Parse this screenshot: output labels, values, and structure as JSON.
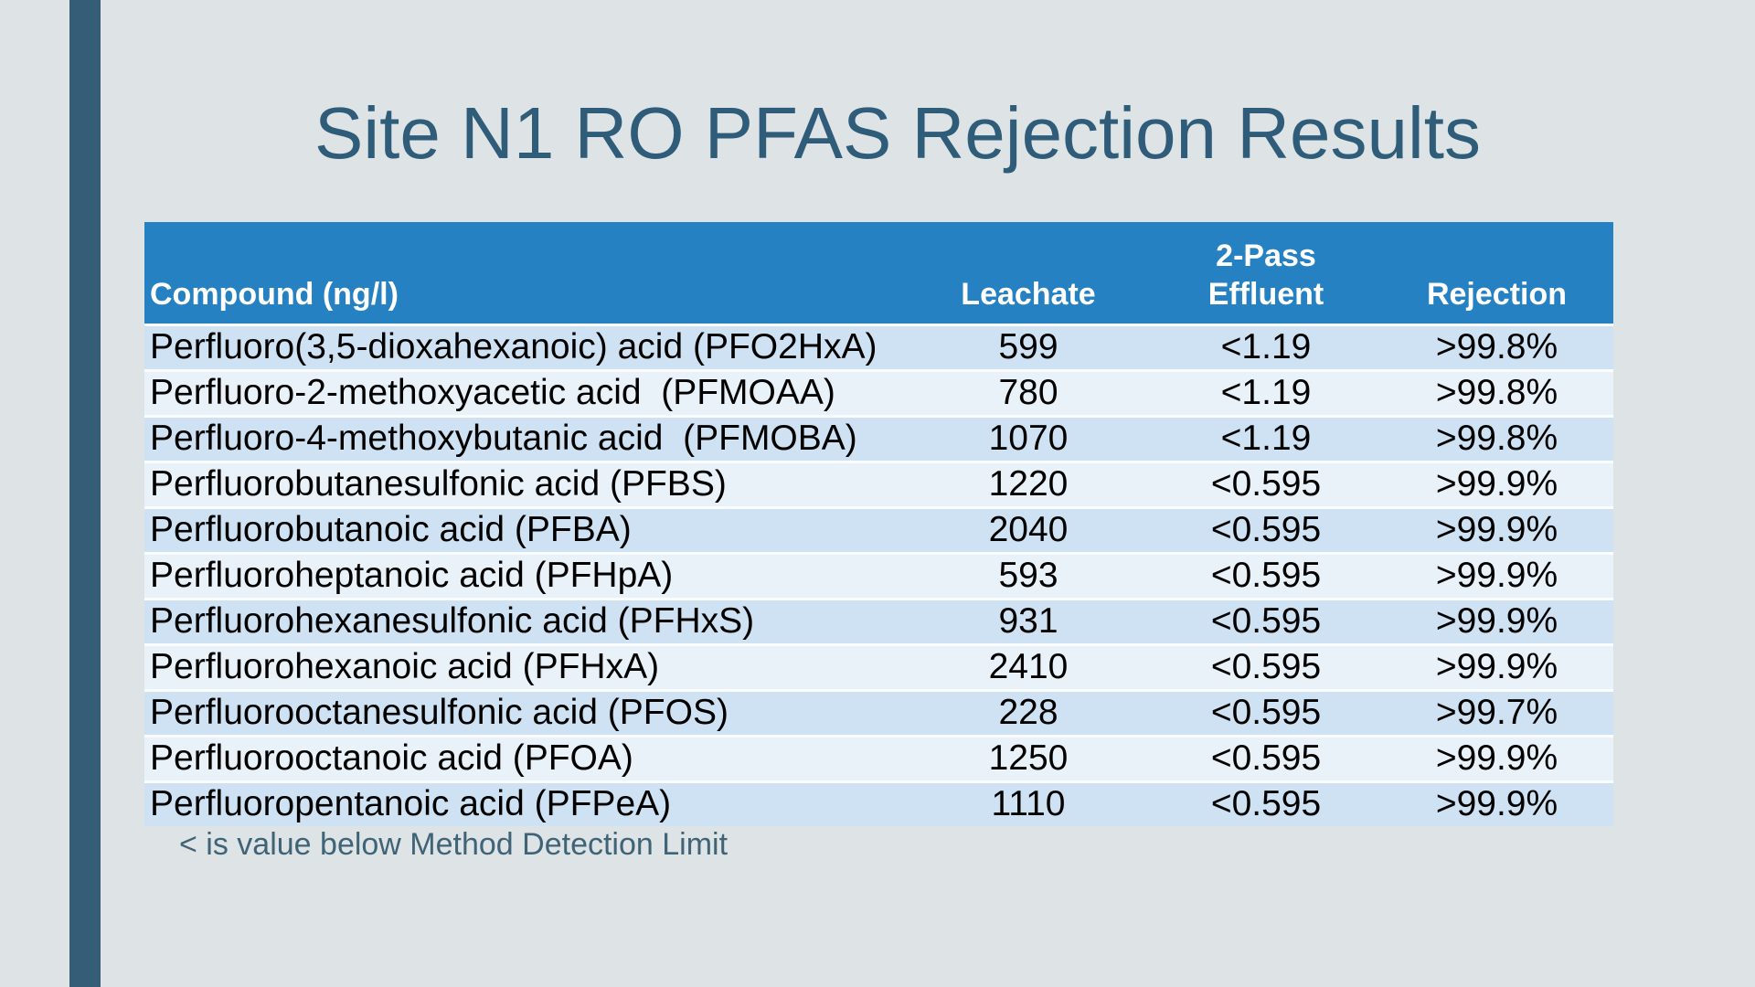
{
  "slide": {
    "title": "Site N1 RO PFAS Rejection Results",
    "footnote": "< is value below Method Detection Limit"
  },
  "table": {
    "headers": {
      "compound": "Compound (ng/l)",
      "leachate": "Leachate",
      "effluent_line1": "2-Pass",
      "effluent_line2": "Effluent",
      "rejection": "Rejection"
    },
    "rows": [
      {
        "compound": "Perfluoro(3,5-dioxahexanoic) acid (PFO2HxA)",
        "leachate": "599",
        "effluent": "<1.19",
        "rejection": ">99.8%"
      },
      {
        "compound": "Perfluoro-2-methoxyacetic acid  (PFMOAA)",
        "leachate": "780",
        "effluent": "<1.19",
        "rejection": ">99.8%"
      },
      {
        "compound": "Perfluoro-4-methoxybutanic acid  (PFMOBA)",
        "leachate": "1070",
        "effluent": "<1.19",
        "rejection": ">99.8%"
      },
      {
        "compound": "Perfluorobutanesulfonic acid (PFBS)",
        "leachate": "1220",
        "effluent": "<0.595",
        "rejection": ">99.9%"
      },
      {
        "compound": "Perfluorobutanoic acid (PFBA)",
        "leachate": "2040",
        "effluent": "<0.595",
        "rejection": ">99.9%"
      },
      {
        "compound": "Perfluoroheptanoic acid (PFHpA)",
        "leachate": "593",
        "effluent": "<0.595",
        "rejection": ">99.9%"
      },
      {
        "compound": "Perfluorohexanesulfonic acid (PFHxS)",
        "leachate": "931",
        "effluent": "<0.595",
        "rejection": ">99.9%"
      },
      {
        "compound": "Perfluorohexanoic acid (PFHxA)",
        "leachate": "2410",
        "effluent": "<0.595",
        "rejection": ">99.9%"
      },
      {
        "compound": "Perfluorooctanesulfonic acid (PFOS)",
        "leachate": "228",
        "effluent": "<0.595",
        "rejection": ">99.7%"
      },
      {
        "compound": "Perfluorooctanoic acid (PFOA)",
        "leachate": "1250",
        "effluent": "<0.595",
        "rejection": ">99.9%"
      },
      {
        "compound": "Perfluoropentanoic acid (PFPeA)",
        "leachate": "1110",
        "effluent": "<0.595",
        "rejection": ">99.9%"
      }
    ]
  },
  "colors": {
    "background": "#dee3e6",
    "accent_bar": "#365d76",
    "title_text": "#2f5d79",
    "header_bg": "#2681c2",
    "header_text": "#ffffff",
    "row_odd": "#cfe2f3",
    "row_even": "#e9f1f9",
    "row_separator": "#fafcfe",
    "body_text": "#000000",
    "footnote_text": "#3f6377"
  }
}
